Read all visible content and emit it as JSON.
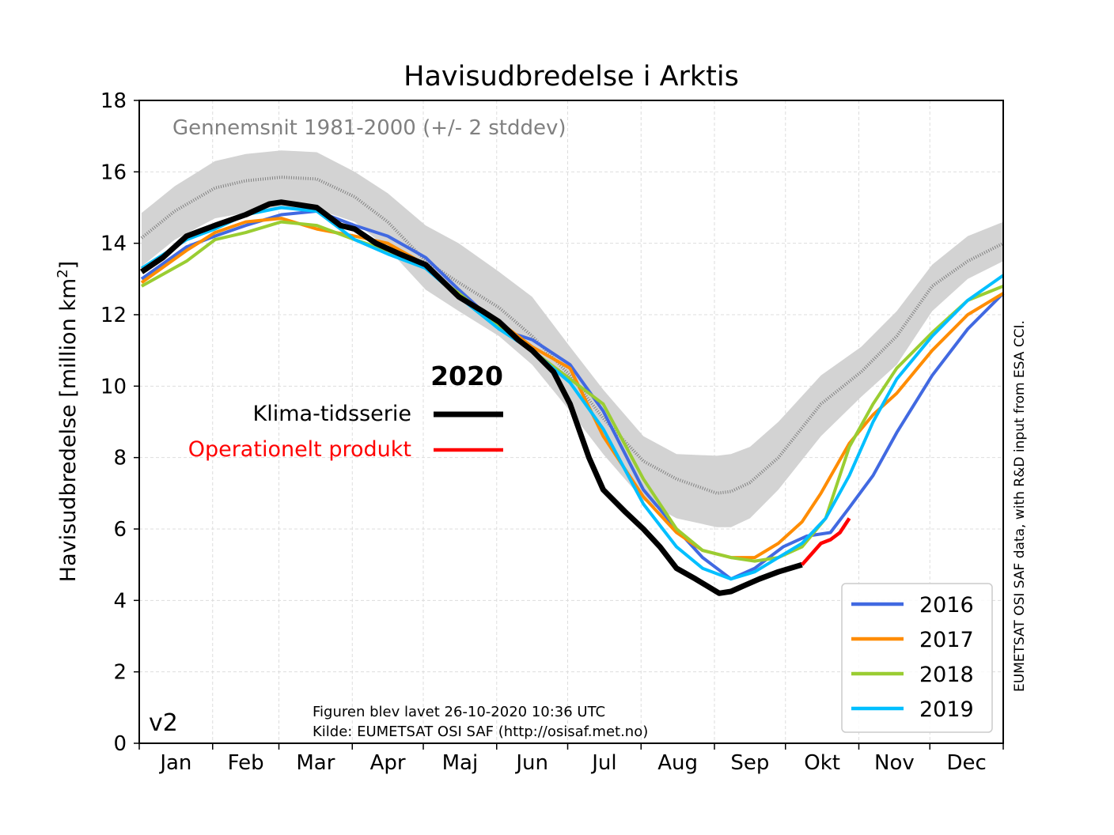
{
  "chart_data": {
    "type": "line",
    "title": "Havisudbredelse i Arktis",
    "ylabel": "Havisudbredelse [million km",
    "ylabel_sup": "2",
    "ylabel_end": "]",
    "ylim": [
      0,
      18
    ],
    "xlim": [
      0,
      365
    ],
    "yticks": [
      "0",
      "2",
      "4",
      "6",
      "8",
      "10",
      "12",
      "14",
      "16",
      "18"
    ],
    "month_labels": [
      "Jan",
      "Feb",
      "Mar",
      "Apr",
      "Maj",
      "Jun",
      "Jul",
      "Aug",
      "Sep",
      "Okt",
      "Nov",
      "Dec"
    ],
    "grid": true,
    "climatology": {
      "label": "Gennemsnit 1981-2000 (+/- 2 stddev)",
      "color": "#808080",
      "band_color": "#d3d3d3",
      "x": [
        1,
        15,
        32,
        45,
        60,
        75,
        91,
        105,
        121,
        135,
        152,
        166,
        182,
        196,
        213,
        227,
        244,
        250,
        258,
        270,
        288,
        305,
        320,
        335,
        350,
        365
      ],
      "mean": [
        14.15,
        14.9,
        15.55,
        15.75,
        15.85,
        15.8,
        15.3,
        14.6,
        13.5,
        12.9,
        12.2,
        11.4,
        10.3,
        9.1,
        7.9,
        7.4,
        7.0,
        7.05,
        7.3,
        8.0,
        9.5,
        10.4,
        11.4,
        12.8,
        13.5,
        14.0
      ],
      "upper": [
        14.85,
        15.6,
        16.3,
        16.5,
        16.6,
        16.55,
        16.0,
        15.4,
        14.5,
        14.0,
        13.2,
        12.5,
        11.1,
        9.9,
        8.6,
        8.1,
        8.05,
        8.1,
        8.3,
        9.0,
        10.3,
        11.1,
        12.1,
        13.4,
        14.2,
        14.6
      ],
      "lower": [
        13.35,
        14.1,
        14.7,
        14.85,
        14.95,
        14.95,
        14.6,
        13.85,
        12.7,
        12.1,
        11.4,
        10.6,
        9.3,
        8.1,
        6.8,
        6.3,
        6.05,
        6.05,
        6.3,
        7.1,
        8.6,
        9.7,
        10.6,
        12.1,
        13.0,
        13.5
      ]
    },
    "series": [
      {
        "name": "2016",
        "color": "#4169e1",
        "x": [
          1,
          20,
          32,
          45,
          60,
          75,
          91,
          105,
          121,
          135,
          145,
          152,
          166,
          182,
          196,
          213,
          227,
          238,
          250,
          260,
          272,
          282,
          292,
          300,
          310,
          320,
          335,
          350,
          365
        ],
        "values": [
          13.0,
          13.9,
          14.2,
          14.5,
          14.8,
          14.9,
          14.5,
          14.2,
          13.6,
          12.7,
          12.1,
          11.6,
          11.3,
          10.6,
          9.3,
          7.1,
          6.0,
          5.2,
          4.6,
          4.9,
          5.5,
          5.8,
          5.9,
          6.6,
          7.5,
          8.7,
          10.3,
          11.6,
          12.6
        ]
      },
      {
        "name": "2017",
        "color": "#ff8c00",
        "x": [
          1,
          20,
          32,
          45,
          60,
          75,
          91,
          105,
          121,
          135,
          152,
          166,
          182,
          196,
          213,
          227,
          238,
          250,
          260,
          270,
          280,
          288,
          300,
          310,
          320,
          335,
          350,
          365
        ],
        "values": [
          12.9,
          13.8,
          14.3,
          14.6,
          14.7,
          14.4,
          14.2,
          14.0,
          13.4,
          12.5,
          11.8,
          11.1,
          10.5,
          8.6,
          6.9,
          5.9,
          5.4,
          5.2,
          5.2,
          5.6,
          6.2,
          7.0,
          8.4,
          9.2,
          9.8,
          11.0,
          12.0,
          12.6
        ]
      },
      {
        "name": "2018",
        "color": "#9acd32",
        "x": [
          1,
          20,
          32,
          45,
          60,
          75,
          91,
          105,
          121,
          135,
          152,
          166,
          182,
          196,
          213,
          227,
          238,
          250,
          260,
          270,
          280,
          290,
          300,
          310,
          320,
          335,
          350,
          365
        ],
        "values": [
          12.8,
          13.5,
          14.1,
          14.3,
          14.6,
          14.5,
          14.1,
          13.8,
          13.3,
          12.6,
          11.7,
          11.0,
          10.2,
          9.5,
          7.4,
          6.0,
          5.4,
          5.2,
          5.1,
          5.2,
          5.5,
          6.3,
          8.3,
          9.5,
          10.5,
          11.5,
          12.4,
          12.8
        ]
      },
      {
        "name": "2019",
        "color": "#00bfff",
        "x": [
          1,
          20,
          32,
          45,
          60,
          75,
          91,
          105,
          121,
          135,
          152,
          166,
          182,
          196,
          213,
          227,
          238,
          250,
          260,
          270,
          280,
          290,
          300,
          310,
          320,
          335,
          350,
          365
        ],
        "values": [
          13.3,
          14.1,
          14.4,
          14.8,
          15.0,
          14.9,
          14.1,
          13.7,
          13.3,
          12.5,
          11.6,
          11.0,
          10.1,
          8.8,
          6.7,
          5.5,
          4.9,
          4.6,
          4.8,
          5.2,
          5.6,
          6.3,
          7.5,
          9.0,
          10.2,
          11.4,
          12.4,
          13.1
        ]
      }
    ],
    "current_year": {
      "label": "2020",
      "climate_series": {
        "name": "Klima-tidsserie",
        "color": "#000000",
        "x": [
          1,
          10,
          20,
          32,
          45,
          55,
          60,
          75,
          85,
          91,
          100,
          110,
          121,
          135,
          145,
          152,
          160,
          166,
          175,
          182,
          190,
          196,
          205,
          213,
          220,
          227,
          235,
          245,
          250,
          255,
          262,
          270,
          280
        ],
        "values": [
          13.2,
          13.6,
          14.2,
          14.5,
          14.8,
          15.1,
          15.15,
          15.0,
          14.5,
          14.4,
          14.0,
          13.7,
          13.4,
          12.5,
          12.1,
          11.8,
          11.3,
          11.0,
          10.4,
          9.5,
          8.0,
          7.1,
          6.5,
          6.0,
          5.5,
          4.9,
          4.6,
          4.2,
          4.25,
          4.4,
          4.6,
          4.8,
          5.0
        ]
      },
      "operational_series": {
        "name": "Operationelt produkt",
        "color": "#ff0000",
        "x": [
          280,
          284,
          288,
          292,
          296,
          300
        ],
        "values": [
          5.0,
          5.3,
          5.6,
          5.7,
          5.9,
          6.3
        ]
      }
    },
    "legend_position": "lower right",
    "version_label": "v2",
    "footer_line1": "Figuren blev lavet 26-10-2020 10:36 UTC",
    "footer_line2": "Kilde: EUMETSAT OSI SAF (http://osisaf.met.no)",
    "side_note": "EUMETSAT OSI SAF data, with R&D input from ESA CCI."
  }
}
